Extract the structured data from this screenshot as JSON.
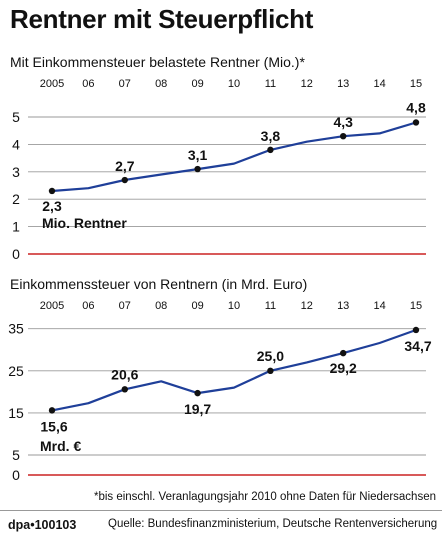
{
  "title": "Rentner mit Steuerpflicht",
  "footnote": "*bis einschl. Veranlagungsjahr 2010 ohne Daten für Niedersachsen",
  "credit": "dpa•100103",
  "source": "Quelle: Bundesfinanzministerium, Deutsche Rentenversicherung",
  "colors": {
    "line": "#1f3f99",
    "zero_line": "#cc2222",
    "grid": "#9a9a9a",
    "text": "#111111"
  },
  "chart_data": [
    {
      "type": "line",
      "title": "Mit Einkommensteuer belastete Rentner (Mio.)*",
      "x_tick_labels": [
        "2005",
        "06",
        "07",
        "08",
        "09",
        "10",
        "11",
        "12",
        "13",
        "14",
        "15"
      ],
      "y_ticks": [
        0,
        1,
        2,
        3,
        4,
        5
      ],
      "ylim": [
        0,
        5
      ],
      "grid": "horizontal",
      "unit_label": "Mio. Rentner",
      "series": [
        {
          "x": [
            2005,
            2006,
            2007,
            2008,
            2009,
            2010,
            2011,
            2012,
            2013,
            2014,
            2015
          ],
          "values": [
            2.3,
            2.4,
            2.7,
            2.9,
            3.1,
            3.3,
            3.8,
            4.1,
            4.3,
            4.4,
            4.8
          ]
        }
      ],
      "data_labels": [
        {
          "x": 2005,
          "value": 2.3,
          "text": "2,3"
        },
        {
          "x": 2007,
          "value": 2.7,
          "text": "2,7"
        },
        {
          "x": 2009,
          "value": 3.1,
          "text": "3,1"
        },
        {
          "x": 2011,
          "value": 3.8,
          "text": "3,8"
        },
        {
          "x": 2013,
          "value": 4.3,
          "text": "4,3"
        },
        {
          "x": 2015,
          "value": 4.8,
          "text": "4,8"
        }
      ]
    },
    {
      "type": "line",
      "title": "Einkommenssteuer von Rentnern (in Mrd. Euro)",
      "x_tick_labels": [
        "2005",
        "06",
        "07",
        "08",
        "09",
        "10",
        "11",
        "12",
        "13",
        "14",
        "15"
      ],
      "y_ticks": [
        0,
        5,
        15,
        25,
        35
      ],
      "ylim": [
        0,
        35
      ],
      "axis_break": true,
      "grid": "horizontal",
      "unit_label": "Mrd. €",
      "series": [
        {
          "x": [
            2005,
            2006,
            2007,
            2008,
            2009,
            2010,
            2011,
            2012,
            2013,
            2014,
            2015
          ],
          "values": [
            15.6,
            17.3,
            20.6,
            22.5,
            19.7,
            21.0,
            25.0,
            27.0,
            29.2,
            31.6,
            34.7
          ]
        }
      ],
      "data_labels": [
        {
          "x": 2005,
          "value": 15.6,
          "text": "15,6"
        },
        {
          "x": 2007,
          "value": 20.6,
          "text": "20,6"
        },
        {
          "x": 2009,
          "value": 19.7,
          "text": "19,7"
        },
        {
          "x": 2011,
          "value": 25.0,
          "text": "25,0"
        },
        {
          "x": 2013,
          "value": 29.2,
          "text": "29,2"
        },
        {
          "x": 2015,
          "value": 34.7,
          "text": "34,7"
        }
      ]
    }
  ]
}
